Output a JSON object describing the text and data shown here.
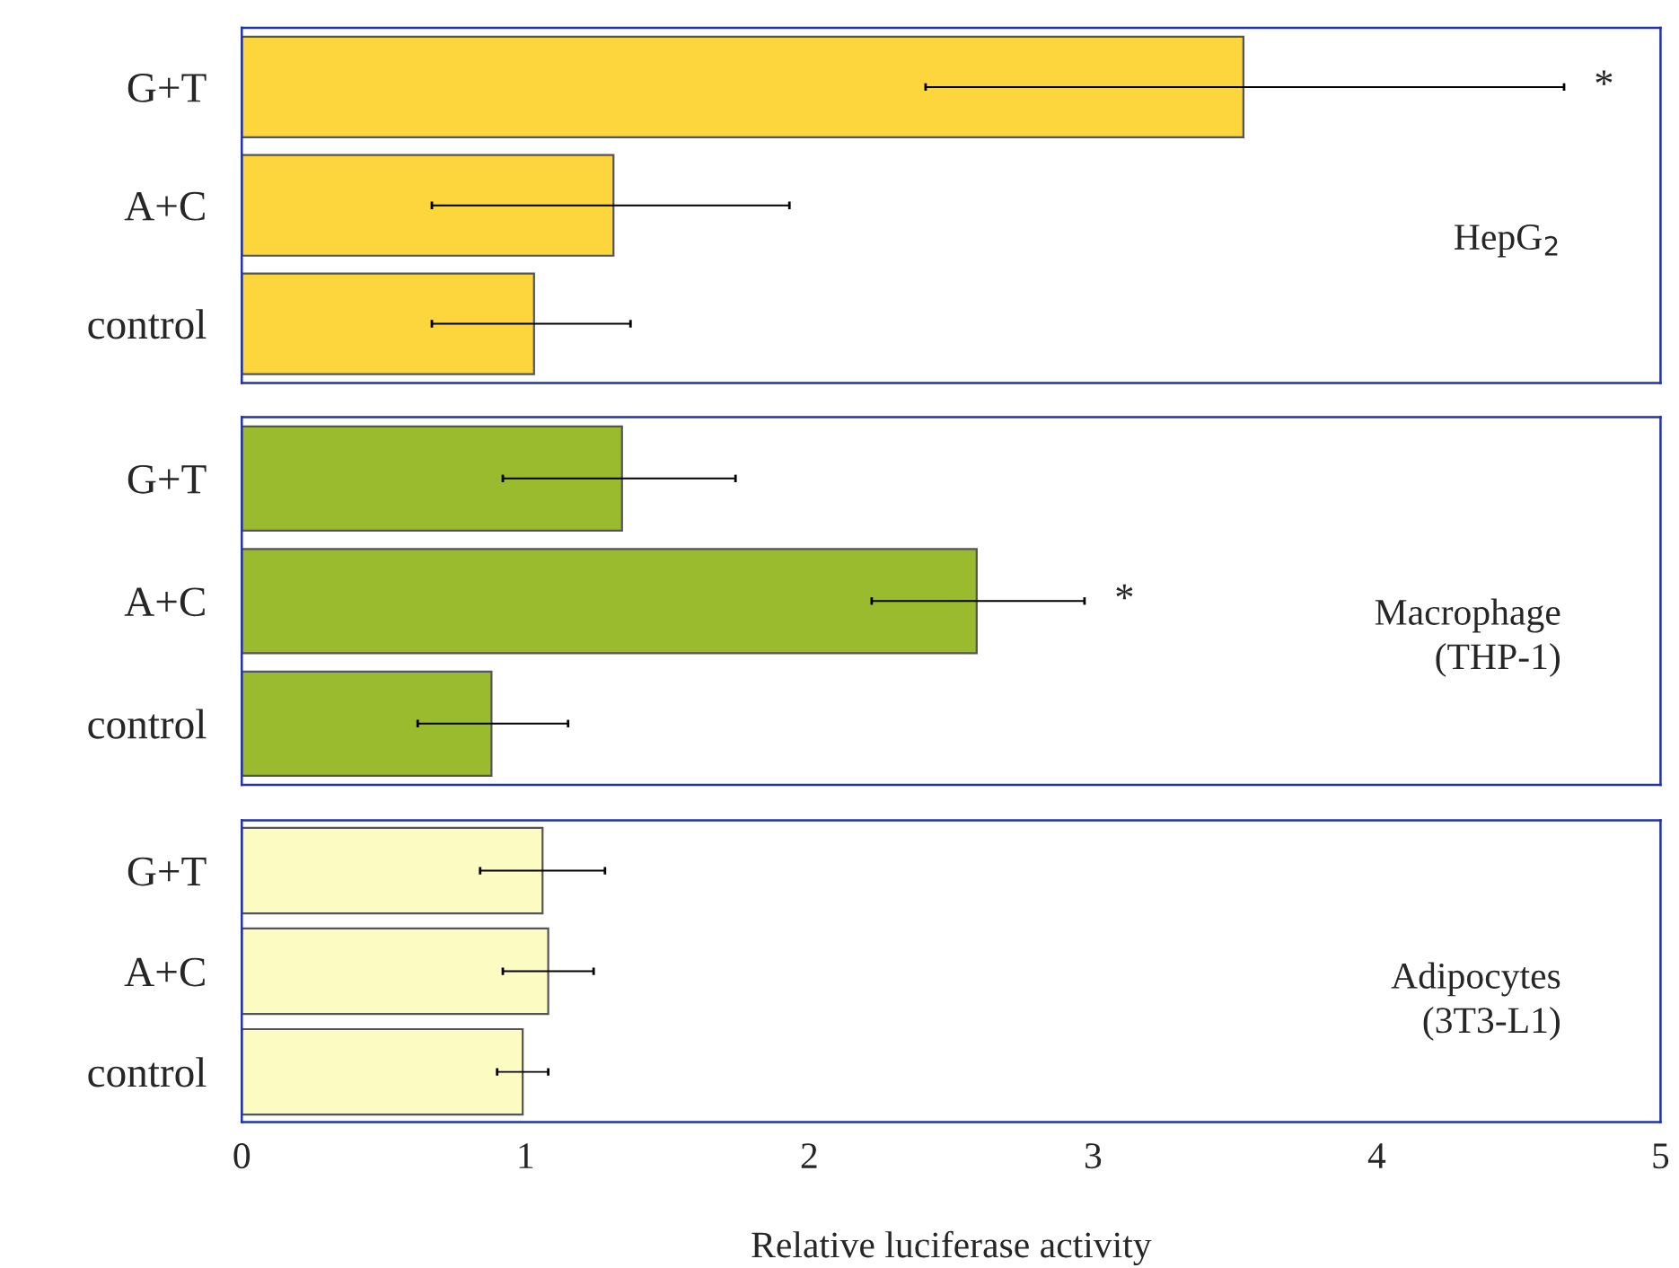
{
  "chart_data": [
    {
      "type": "bar",
      "orientation": "horizontal",
      "categories": [
        "G+T",
        "A+C",
        "control"
      ],
      "values": [
        3.53,
        1.31,
        1.03
      ],
      "errors": [
        [
          2.41,
          4.66
        ],
        [
          0.67,
          1.93
        ],
        [
          0.67,
          1.37
        ]
      ],
      "color": "#fdd53c",
      "xlim": [
        0,
        5
      ],
      "xticks": [
        0,
        1,
        2,
        3,
        4,
        5
      ],
      "tick_labels": "y",
      "annotations": [
        "HepG$_{2}$",
        {
          "text": "*",
          "x": 4.66,
          "y": "G+T"
        }
      ]
    },
    {
      "type": "bar",
      "orientation": "horizontal",
      "categories": [
        "G+T",
        "A+C",
        "control"
      ],
      "values": [
        1.34,
        2.59,
        0.88
      ],
      "errors": [
        [
          0.92,
          1.74
        ],
        [
          2.22,
          2.97
        ],
        [
          0.62,
          1.15
        ]
      ],
      "color": "#9bbb2f",
      "xlim": [
        0,
        5
      ],
      "xticks": [
        0,
        1,
        2,
        3,
        4,
        5
      ],
      "tick_labels": "y",
      "annotations": [
        "Macrophage\n(THP-1)",
        {
          "text": "*",
          "x": 2.97,
          "y": "A+C"
        }
      ]
    },
    {
      "type": "bar",
      "orientation": "horizontal",
      "categories": [
        "G+T",
        "A+C",
        "control"
      ],
      "values": [
        1.06,
        1.08,
        0.99
      ],
      "errors": [
        [
          0.84,
          1.28
        ],
        [
          0.92,
          1.24
        ],
        [
          0.9,
          1.08
        ]
      ],
      "color": "#fcfbc2",
      "xlim": [
        0,
        5
      ],
      "xticks": [
        0,
        1,
        2,
        3,
        4,
        5
      ],
      "xlabel": "Relative luciferase activity",
      "annotations": [
        "Adipocytes\n(3T3-L1)"
      ]
    }
  ]
}
